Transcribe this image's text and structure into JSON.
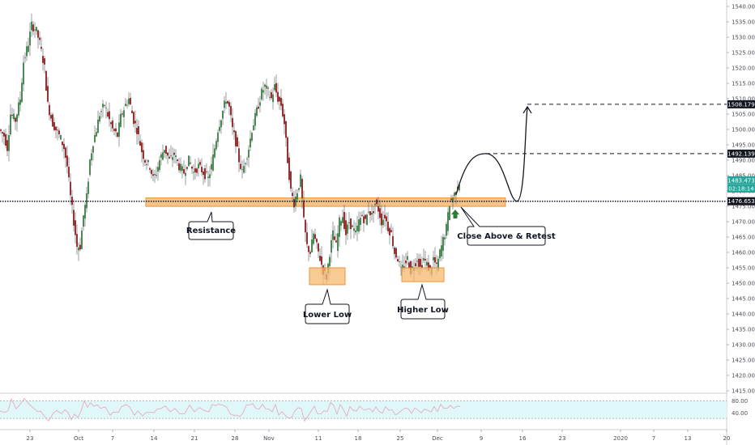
{
  "chart_data": {
    "type": "candlestick",
    "title": "",
    "price_axis": {
      "min": 1415,
      "max": 1540,
      "ticks": [
        1540,
        1535,
        1530,
        1525,
        1520,
        1515,
        1510,
        1505,
        1500,
        1495,
        1490,
        1485,
        1480,
        1475,
        1470,
        1465,
        1460,
        1455,
        1450,
        1445,
        1440,
        1435,
        1430,
        1425,
        1420,
        1415
      ],
      "tick_labels": [
        "1540.000",
        "1535.000",
        "1530.000",
        "1525.000",
        "1520.000",
        "1515.000",
        "1510.000",
        "1505.000",
        "1500.000",
        "1495.000",
        "1490.000",
        "1485.000",
        "1480.000",
        "1475.000",
        "1470.000",
        "1465.000",
        "1460.000",
        "1455.000",
        "1450.000",
        "1445.000",
        "1440.000",
        "1435.000",
        "1430.000",
        "1425.000",
        "1420.000",
        "1415.000"
      ]
    },
    "time_axis": {
      "labels": [
        "23",
        "Oct",
        "7",
        "14",
        "21",
        "28",
        "Nov",
        "11",
        "18",
        "25",
        "Dec",
        "9",
        "16",
        "23",
        "2020",
        "7",
        "13",
        "20"
      ]
    },
    "rsi": {
      "levels": [
        80.0,
        40.0
      ],
      "level_labels": [
        "80.00",
        "40.00"
      ],
      "band_color": "#e0f7fa"
    },
    "price_tags": [
      {
        "label": "1508.179",
        "value": 1508.179,
        "color": "#131722"
      },
      {
        "label": "1492.139",
        "value": 1492.139,
        "color": "#131722"
      },
      {
        "label": "1483.473",
        "value": 1483.473,
        "color": "#26a69a"
      },
      {
        "label": "02:18:14",
        "value": 1480.8,
        "color": "#26a69a"
      },
      {
        "label": "1476.653",
        "value": 1476.653,
        "color": "#131722"
      }
    ],
    "levels": {
      "resistance": 1476.653,
      "resistance_zone": [
        1475.5,
        1477.2
      ],
      "target_1": 1492.139,
      "target_2": 1508.179
    },
    "annotations": [
      {
        "text": "Resistance"
      },
      {
        "text": "Lower Low"
      },
      {
        "text": "Higher Low"
      },
      {
        "text": "Close Above & Retest"
      }
    ],
    "zones": {
      "lower_low": [
        1449.5,
        1455.0
      ],
      "higher_low": [
        1450.5,
        1455.0
      ]
    },
    "series_shape": {
      "description_points": [
        [
          0,
          1500
        ],
        [
          6,
          1498
        ],
        [
          10,
          1494
        ],
        [
          14,
          1505
        ],
        [
          20,
          1503
        ],
        [
          26,
          1510
        ],
        [
          30,
          1522
        ],
        [
          36,
          1528
        ],
        [
          40,
          1534
        ],
        [
          46,
          1532
        ],
        [
          50,
          1528
        ],
        [
          56,
          1520
        ],
        [
          60,
          1508
        ],
        [
          66,
          1502
        ],
        [
          70,
          1500
        ],
        [
          76,
          1497
        ],
        [
          80,
          1494
        ],
        [
          84,
          1488
        ],
        [
          88,
          1478
        ],
        [
          92,
          1470
        ],
        [
          96,
          1462
        ],
        [
          100,
          1462
        ],
        [
          104,
          1472
        ],
        [
          108,
          1478
        ],
        [
          112,
          1490
        ],
        [
          116,
          1496
        ],
        [
          120,
          1500
        ],
        [
          124,
          1505
        ],
        [
          130,
          1508
        ],
        [
          136,
          1503
        ],
        [
          140,
          1500
        ],
        [
          146,
          1498
        ],
        [
          150,
          1504
        ],
        [
          156,
          1508
        ],
        [
          160,
          1510
        ],
        [
          166,
          1503
        ],
        [
          170,
          1500
        ],
        [
          176,
          1493
        ],
        [
          180,
          1490
        ],
        [
          186,
          1488
        ],
        [
          190,
          1484
        ],
        [
          194,
          1486
        ],
        [
          198,
          1490
        ],
        [
          204,
          1494
        ],
        [
          210,
          1490
        ],
        [
          216,
          1492
        ],
        [
          222,
          1488
        ],
        [
          228,
          1486
        ],
        [
          234,
          1490
        ],
        [
          240,
          1486
        ],
        [
          246,
          1488
        ],
        [
          252,
          1486
        ],
        [
          258,
          1484
        ],
        [
          262,
          1488
        ],
        [
          266,
          1494
        ],
        [
          270,
          1500
        ],
        [
          276,
          1506
        ],
        [
          280,
          1510
        ],
        [
          284,
          1507
        ],
        [
          288,
          1500
        ],
        [
          292,
          1496
        ],
        [
          296,
          1490
        ],
        [
          300,
          1486
        ],
        [
          304,
          1490
        ],
        [
          308,
          1494
        ],
        [
          312,
          1500
        ],
        [
          316,
          1504
        ],
        [
          320,
          1508
        ],
        [
          324,
          1512
        ],
        [
          328,
          1514
        ],
        [
          332,
          1512
        ],
        [
          336,
          1510
        ],
        [
          340,
          1514
        ],
        [
          344,
          1510
        ],
        [
          348,
          1508
        ],
        [
          352,
          1502
        ],
        [
          356,
          1490
        ],
        [
          360,
          1480
        ],
        [
          364,
          1476
        ],
        [
          368,
          1480
        ],
        [
          372,
          1484
        ],
        [
          376,
          1470
        ],
        [
          380,
          1462
        ],
        [
          384,
          1460
        ],
        [
          388,
          1466
        ],
        [
          392,
          1462
        ],
        [
          396,
          1458
        ],
        [
          400,
          1454
        ],
        [
          404,
          1452
        ],
        [
          408,
          1460
        ],
        [
          412,
          1466
        ],
        [
          416,
          1462
        ],
        [
          420,
          1470
        ],
        [
          424,
          1472
        ],
        [
          428,
          1466
        ],
        [
          432,
          1470
        ],
        [
          436,
          1468
        ],
        [
          440,
          1466
        ],
        [
          444,
          1470
        ],
        [
          448,
          1472
        ],
        [
          452,
          1470
        ],
        [
          456,
          1474
        ],
        [
          460,
          1472
        ],
        [
          464,
          1476
        ],
        [
          468,
          1474
        ],
        [
          472,
          1470
        ],
        [
          476,
          1472
        ],
        [
          480,
          1468
        ],
        [
          484,
          1466
        ],
        [
          488,
          1460
        ],
        [
          492,
          1458
        ],
        [
          496,
          1454
        ],
        [
          500,
          1456
        ],
        [
          504,
          1458
        ],
        [
          508,
          1454
        ],
        [
          512,
          1456
        ],
        [
          516,
          1458
        ],
        [
          520,
          1455
        ],
        [
          524,
          1458
        ],
        [
          528,
          1456
        ],
        [
          532,
          1454
        ],
        [
          536,
          1458
        ],
        [
          540,
          1455
        ],
        [
          544,
          1460
        ],
        [
          548,
          1464
        ],
        [
          552,
          1468
        ],
        [
          556,
          1476
        ],
        [
          560,
          1478
        ],
        [
          564,
          1480
        ],
        [
          568,
          1483
        ]
      ]
    },
    "projection": "curve up to 1492.139, dip back toward resistance, then rally to 1508.179"
  }
}
